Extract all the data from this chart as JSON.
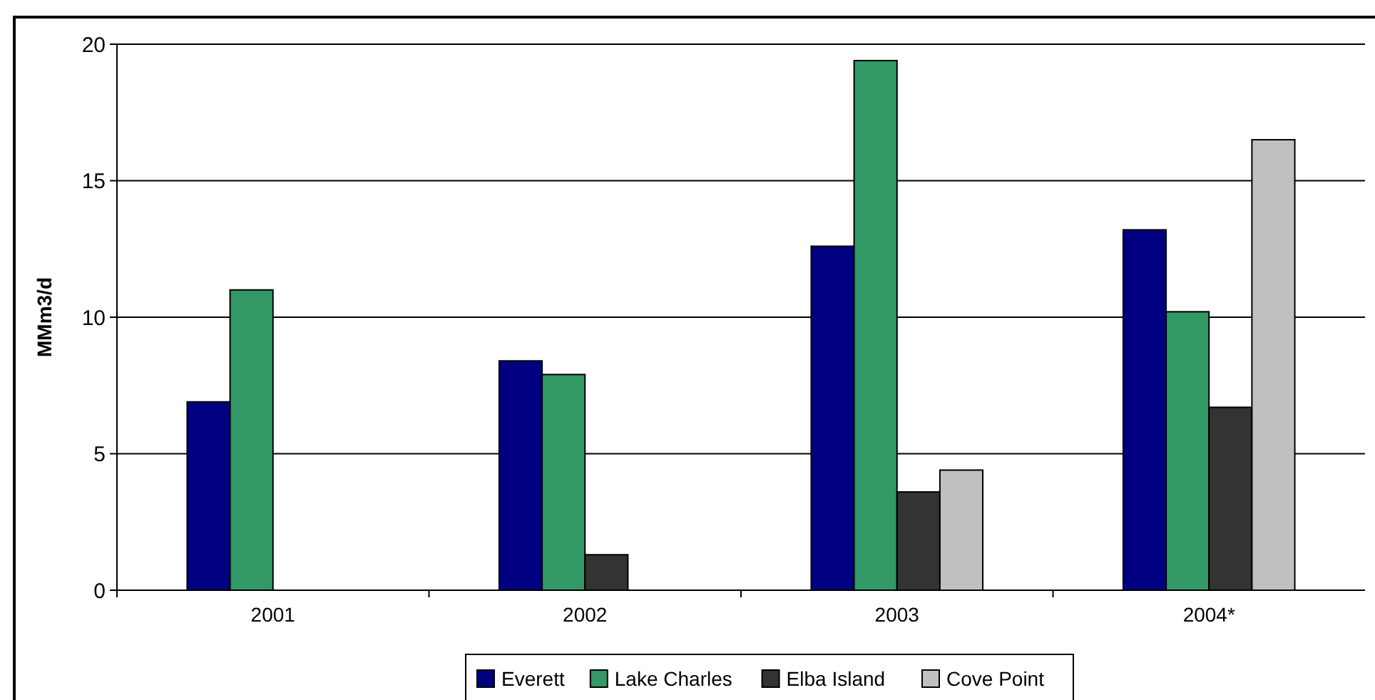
{
  "chart_data": {
    "type": "bar",
    "ylabel": "MMm3/d",
    "categories": [
      "2001",
      "2002",
      "2003",
      "2004*"
    ],
    "series": [
      {
        "name": "Everett",
        "color": "#000080",
        "values": [
          6.9,
          8.4,
          12.6,
          13.2
        ]
      },
      {
        "name": "Lake Charles",
        "color": "#339966",
        "values": [
          11.0,
          7.9,
          19.4,
          10.2
        ]
      },
      {
        "name": "Elba Island",
        "color": "#333333",
        "values": [
          null,
          1.3,
          3.6,
          6.7
        ]
      },
      {
        "name": "Cove Point",
        "color": "#c0c0c0",
        "values": [
          null,
          null,
          4.4,
          16.5
        ]
      }
    ],
    "ylim": [
      0,
      20
    ],
    "yticks": [
      0,
      5,
      10,
      15,
      20
    ],
    "grid": "y",
    "legend": "bottom"
  }
}
